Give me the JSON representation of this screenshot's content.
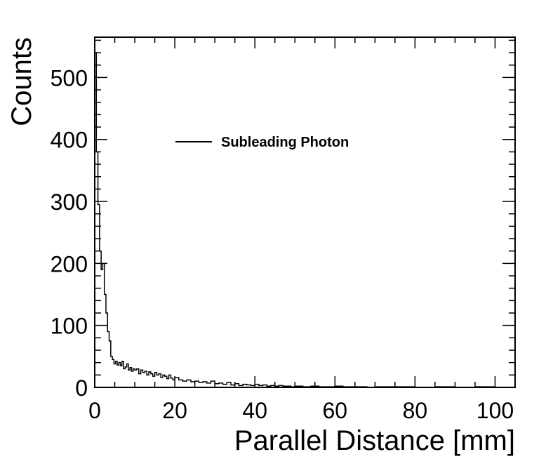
{
  "chart_data": {
    "type": "line",
    "style": "step-histogram",
    "xlabel": "Parallel Distance [mm]",
    "ylabel": "Counts",
    "xlim": [
      0,
      105
    ],
    "ylim": [
      0,
      565
    ],
    "x_ticks": [
      0,
      20,
      40,
      60,
      80,
      100
    ],
    "y_ticks": [
      0,
      100,
      200,
      300,
      400,
      500
    ],
    "x_tick_labels": [
      "0",
      "20",
      "40",
      "60",
      "80",
      "100"
    ],
    "y_tick_labels": [
      "0",
      "100",
      "200",
      "300",
      "400",
      "500"
    ],
    "grid": false,
    "legend_position": "top-center",
    "color": "#000000",
    "series": [
      {
        "name": "Subleading Photon",
        "x": [
          0.0,
          0.4,
          0.8,
          1.2,
          1.6,
          2.0,
          2.4,
          2.8,
          3.2,
          3.6,
          4.0,
          4.4,
          4.8,
          5.2,
          5.6,
          6.0,
          6.4,
          6.8,
          7.2,
          7.6,
          8.0,
          8.4,
          8.8,
          9.2,
          9.6,
          10.0,
          10.5,
          11.0,
          11.5,
          12.0,
          12.5,
          13.0,
          13.5,
          14.0,
          14.5,
          15.0,
          15.5,
          16.0,
          16.5,
          17.0,
          17.5,
          18.0,
          18.5,
          19.0,
          19.5,
          20.0,
          21.0,
          22.0,
          23.0,
          24.0,
          25.0,
          26.0,
          27.0,
          28.0,
          29.0,
          30.0,
          31.0,
          32.0,
          33.0,
          34.0,
          35.0,
          36.0,
          37.0,
          38.0,
          39.0,
          40.0,
          41.0,
          42.0,
          43.0,
          44.0,
          45.0,
          46.0,
          47.0,
          48.0,
          49.0,
          50.0,
          52.0,
          54.0,
          56.0,
          58.0,
          60.0,
          62.0,
          64.0,
          66.0,
          68.0,
          70.0,
          75.0,
          80.0,
          85.0,
          90.0,
          95.0,
          100.0
        ],
        "y": [
          540,
          380,
          295,
          220,
          190,
          200,
          150,
          120,
          90,
          75,
          50,
          45,
          38,
          42,
          36,
          40,
          35,
          42,
          30,
          33,
          38,
          28,
          32,
          26,
          30,
          28,
          30,
          22,
          28,
          24,
          26,
          20,
          25,
          22,
          18,
          24,
          20,
          22,
          16,
          20,
          18,
          14,
          20,
          15,
          12,
          16,
          12,
          10,
          12,
          9,
          10,
          8,
          9,
          7,
          10,
          6,
          7,
          5,
          8,
          4,
          6,
          3,
          5,
          4,
          3,
          5,
          3,
          4,
          2,
          3,
          2,
          3,
          2,
          2,
          1,
          2,
          1,
          2,
          1,
          1,
          2,
          1,
          1,
          1,
          0,
          1,
          1,
          0,
          1,
          0,
          1,
          0
        ]
      }
    ]
  }
}
